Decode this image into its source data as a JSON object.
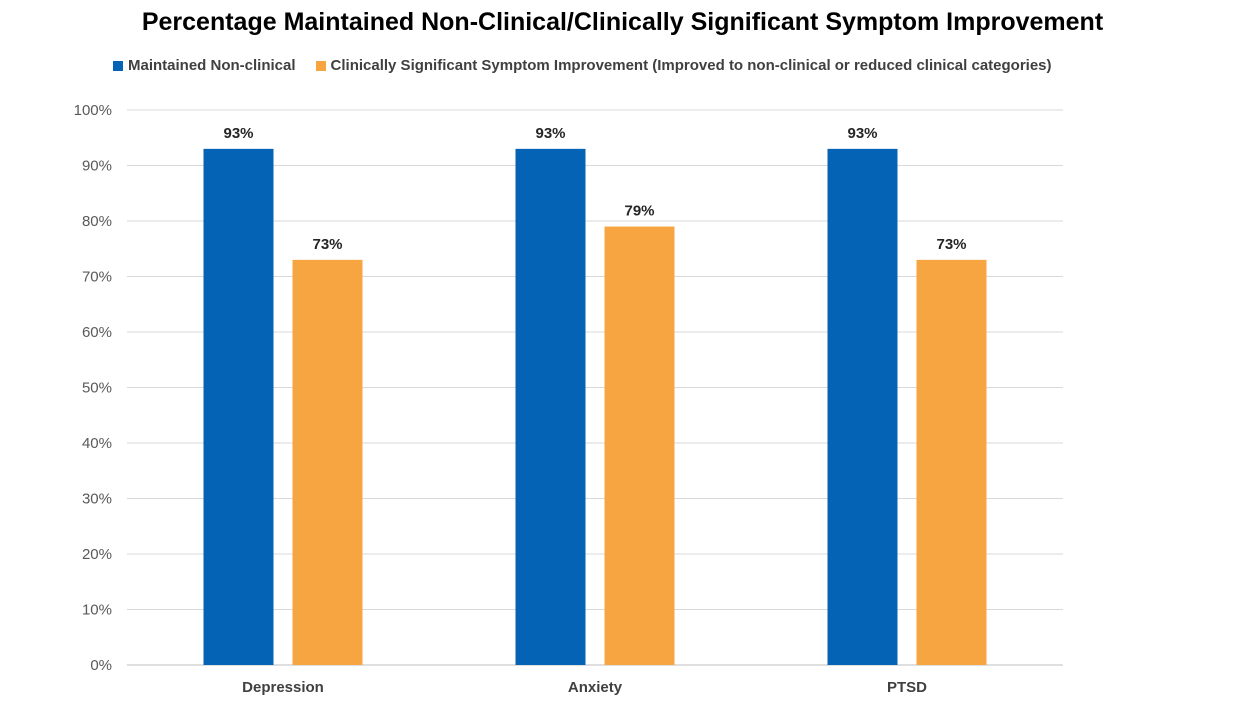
{
  "chart_data": {
    "type": "bar",
    "title": "Percentage Maintained Non-Clinical/Clinically Significant Symptom Improvement",
    "categories": [
      "Depression",
      "Anxiety",
      "PTSD"
    ],
    "series": [
      {
        "name": "Maintained Non-clinical",
        "values": [
          93,
          93,
          93
        ],
        "color": "#0563b5"
      },
      {
        "name": "Clinically Significant Symptom Improvement (Improved to non-clinical or reduced clinical categories)",
        "values": [
          73,
          79,
          73
        ],
        "color": "#f7a540"
      }
    ],
    "data_labels": [
      [
        "93%",
        "93%",
        "93%"
      ],
      [
        "73%",
        "79%",
        "73%"
      ]
    ],
    "ylim": [
      0,
      100
    ],
    "yticks": [
      0,
      10,
      20,
      30,
      40,
      50,
      60,
      70,
      80,
      90,
      100
    ],
    "ytick_labels": [
      "0%",
      "10%",
      "20%",
      "30%",
      "40%",
      "50%",
      "60%",
      "70%",
      "80%",
      "90%",
      "100%"
    ],
    "xlabel": "",
    "ylabel": "",
    "grid": true,
    "legend_position": "top-left"
  }
}
